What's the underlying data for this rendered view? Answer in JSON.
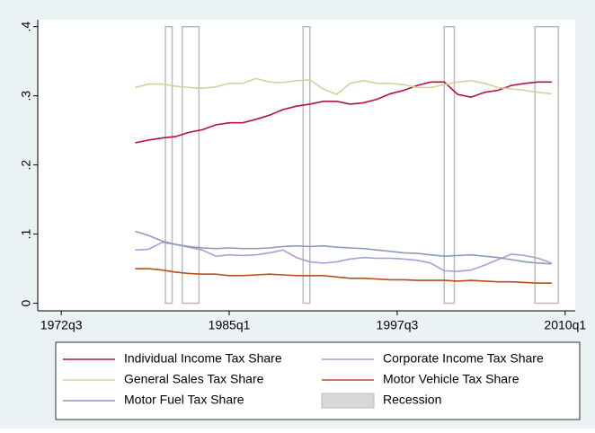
{
  "chart_data": {
    "type": "line",
    "x": [
      72,
      76,
      80,
      84,
      88,
      92,
      96,
      100,
      104,
      108,
      112,
      116,
      120,
      124,
      128,
      132,
      136,
      140,
      144,
      148,
      152,
      156,
      160,
      164,
      168,
      172,
      176,
      180,
      184,
      188,
      192,
      196
    ],
    "xlim": [
      43,
      203
    ],
    "xticks": [
      {
        "value": 50,
        "label": "1972q3"
      },
      {
        "value": 100,
        "label": "1985q1"
      },
      {
        "value": 150,
        "label": "1997q3"
      },
      {
        "value": 200,
        "label": "2010q1"
      }
    ],
    "ylim": [
      -0.011,
      0.41
    ],
    "yticks": [
      0,
      {
        "value": 0.1,
        "label": ".1"
      },
      {
        "value": 0.2,
        "label": ".2"
      },
      {
        "value": 0.3,
        "label": ".3"
      },
      {
        "value": 0.4,
        "label": ".4"
      }
    ],
    "series": [
      {
        "name": "Individual Income Tax Share",
        "color": "#b4113f",
        "values": [
          0.232,
          0.236,
          0.239,
          0.241,
          0.247,
          0.251,
          0.258,
          0.261,
          0.261,
          0.266,
          0.272,
          0.28,
          0.285,
          0.288,
          0.292,
          0.292,
          0.288,
          0.29,
          0.295,
          0.303,
          0.308,
          0.315,
          0.32,
          0.32,
          0.302,
          0.298,
          0.305,
          0.308,
          0.315,
          0.318,
          0.32,
          0.32
        ]
      },
      {
        "name": "Corporate Income Tax Share",
        "color": "#a89ed8",
        "values": [
          0.077,
          0.078,
          0.088,
          0.085,
          0.081,
          0.077,
          0.068,
          0.07,
          0.069,
          0.07,
          0.073,
          0.077,
          0.066,
          0.06,
          0.058,
          0.06,
          0.064,
          0.066,
          0.065,
          0.065,
          0.064,
          0.062,
          0.058,
          0.047,
          0.046,
          0.048,
          0.055,
          0.063,
          0.071,
          0.069,
          0.065,
          0.058
        ]
      },
      {
        "name": "General Sales Tax Share",
        "color": "#d8d09a",
        "values": [
          0.312,
          0.317,
          0.317,
          0.314,
          0.312,
          0.311,
          0.313,
          0.318,
          0.318,
          0.325,
          0.32,
          0.319,
          0.322,
          0.323,
          0.31,
          0.302,
          0.318,
          0.322,
          0.318,
          0.318,
          0.316,
          0.312,
          0.312,
          0.316,
          0.32,
          0.322,
          0.318,
          0.312,
          0.31,
          0.308,
          0.305,
          0.303
        ]
      },
      {
        "name": "Motor Vehicle Tax Share",
        "color": "#b5501f",
        "values": [
          0.05,
          0.05,
          0.048,
          0.045,
          0.043,
          0.042,
          0.042,
          0.04,
          0.04,
          0.041,
          0.042,
          0.041,
          0.04,
          0.04,
          0.04,
          0.038,
          0.036,
          0.036,
          0.035,
          0.034,
          0.034,
          0.033,
          0.033,
          0.033,
          0.032,
          0.033,
          0.032,
          0.031,
          0.031,
          0.03,
          0.029,
          0.029
        ]
      },
      {
        "name": "Motor Fuel Tax Share",
        "color": "#8a9cb8",
        "values": [
          0.104,
          0.098,
          0.09,
          0.085,
          0.082,
          0.08,
          0.079,
          0.08,
          0.079,
          0.079,
          0.08,
          0.082,
          0.083,
          0.082,
          0.083,
          0.081,
          0.08,
          0.079,
          0.077,
          0.075,
          0.073,
          0.072,
          0.07,
          0.068,
          0.069,
          0.07,
          0.068,
          0.066,
          0.063,
          0.06,
          0.058,
          0.057
        ]
      }
    ],
    "recession": {
      "name": "Recession",
      "color": "#bbbbbb",
      "periods": [
        [
          81,
          83
        ],
        [
          86,
          91
        ],
        [
          122,
          124
        ],
        [
          164,
          167
        ],
        [
          191,
          198
        ]
      ]
    }
  }
}
